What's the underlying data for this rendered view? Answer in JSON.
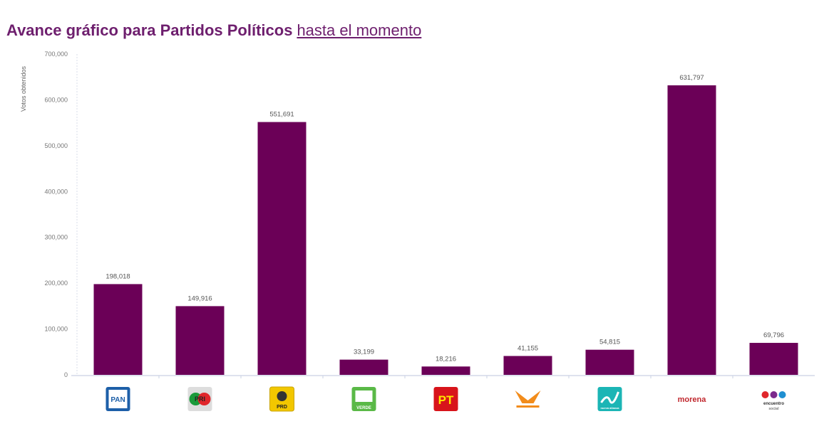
{
  "title": {
    "main": "Avance gráfico para Partidos Políticos",
    "link": "hasta el momento"
  },
  "chart_data": {
    "type": "bar",
    "title": "Avance gráfico para Partidos Políticos hasta el momento",
    "ylabel": "Votos obtenidos",
    "xlabel": "",
    "ylim": [
      0,
      700000
    ],
    "yticks": [
      "0",
      "100,000",
      "200,000",
      "300,000",
      "400,000",
      "500,000",
      "600,000",
      "700,000"
    ],
    "categories": [
      "PAN",
      "PRI",
      "PRD",
      "PVEM",
      "PT",
      "Movimiento Ciudadano",
      "Nueva Alianza",
      "morena",
      "Encuentro Social"
    ],
    "values": [
      198018,
      149916,
      551691,
      33199,
      18216,
      41155,
      54815,
      631797,
      69796
    ],
    "value_labels": [
      "198,018",
      "149,916",
      "551,691",
      "33,199",
      "18,216",
      "41,155",
      "54,815",
      "631,797",
      "69,796"
    ],
    "bar_color": "#6b0057",
    "grid": false,
    "legend": "none",
    "x_tick_style": "party logos"
  }
}
